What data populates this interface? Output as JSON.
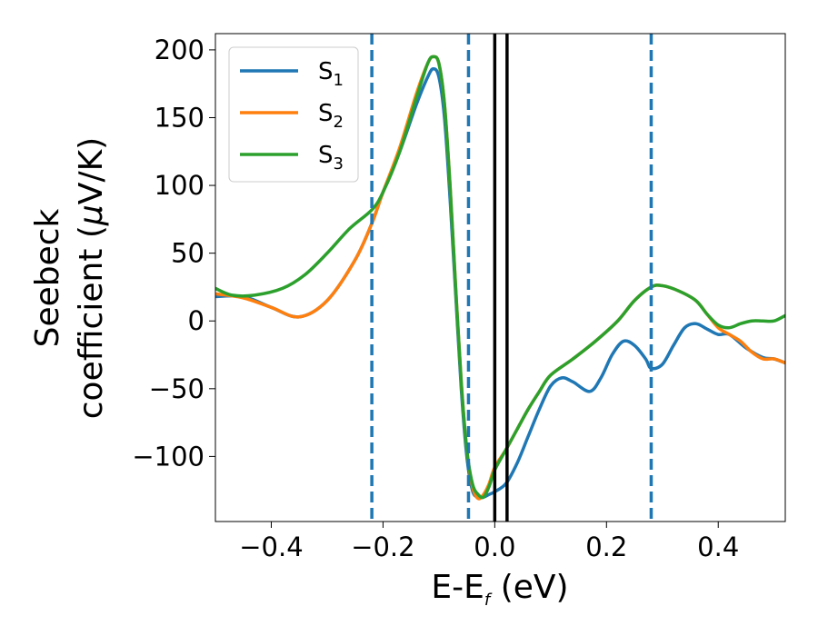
{
  "chart_data": {
    "type": "line",
    "xlabel": {
      "main": "E-E",
      "sub": "f",
      "unit": " (eV)"
    },
    "ylabel": {
      "line1": "Seebeck",
      "line2_pre": "coefficient  (",
      "line2_mu": "μ",
      "line2_post": "V/K)"
    },
    "xlim": [
      -0.5,
      0.52
    ],
    "ylim": [
      -148,
      212
    ],
    "xticks": [
      -0.4,
      -0.2,
      0.0,
      0.2,
      0.4
    ],
    "xtick_labels": [
      "−0.4",
      "−0.2",
      "0.0",
      "0.2",
      "0.4"
    ],
    "yticks": [
      -100,
      -50,
      0,
      50,
      100,
      150,
      200
    ],
    "ytick_labels": [
      "−100",
      "−50",
      "0",
      "50",
      "100",
      "150",
      "200"
    ],
    "grid": false,
    "legend_position": "top-left",
    "vlines_dashed": {
      "color": "#1f77b4",
      "x": [
        -0.22,
        -0.047,
        0.28
      ]
    },
    "vlines_solid": {
      "color": "#000000",
      "x": [
        0.0,
        0.022
      ]
    },
    "series": [
      {
        "name": "S",
        "name_sub": "1",
        "color": "#1f77b4",
        "points": [
          [
            -0.5,
            18
          ],
          [
            -0.45,
            18
          ],
          [
            -0.4,
            10
          ],
          [
            -0.35,
            3
          ],
          [
            -0.3,
            15
          ],
          [
            -0.25,
            45
          ],
          [
            -0.22,
            72
          ],
          [
            -0.2,
            95
          ],
          [
            -0.17,
            125
          ],
          [
            -0.14,
            160
          ],
          [
            -0.12,
            180
          ],
          [
            -0.11,
            186
          ],
          [
            -0.1,
            180
          ],
          [
            -0.09,
            150
          ],
          [
            -0.08,
            90
          ],
          [
            -0.07,
            20
          ],
          [
            -0.06,
            -50
          ],
          [
            -0.05,
            -100
          ],
          [
            -0.04,
            -125
          ],
          [
            -0.03,
            -130
          ],
          [
            -0.02,
            -130
          ],
          [
            -0.01,
            -128
          ],
          [
            0.0,
            -126
          ],
          [
            0.02,
            -120
          ],
          [
            0.04,
            -105
          ],
          [
            0.06,
            -85
          ],
          [
            0.08,
            -65
          ],
          [
            0.1,
            -48
          ],
          [
            0.12,
            -42
          ],
          [
            0.14,
            -45
          ],
          [
            0.17,
            -52
          ],
          [
            0.19,
            -42
          ],
          [
            0.21,
            -25
          ],
          [
            0.23,
            -15
          ],
          [
            0.25,
            -18
          ],
          [
            0.27,
            -28
          ],
          [
            0.28,
            -35
          ],
          [
            0.3,
            -32
          ],
          [
            0.32,
            -18
          ],
          [
            0.34,
            -5
          ],
          [
            0.36,
            -2
          ],
          [
            0.38,
            -6
          ],
          [
            0.4,
            -10
          ],
          [
            0.42,
            -10
          ],
          [
            0.45,
            -20
          ],
          [
            0.48,
            -27
          ],
          [
            0.5,
            -28
          ],
          [
            0.52,
            -31
          ]
        ]
      },
      {
        "name": "S",
        "name_sub": "2",
        "color": "#ff7f0e",
        "points": [
          [
            -0.5,
            20
          ],
          [
            -0.45,
            17
          ],
          [
            -0.4,
            10
          ],
          [
            -0.35,
            3
          ],
          [
            -0.3,
            15
          ],
          [
            -0.25,
            45
          ],
          [
            -0.22,
            72
          ],
          [
            -0.2,
            95
          ],
          [
            -0.17,
            128
          ],
          [
            -0.14,
            168
          ],
          [
            -0.12,
            190
          ],
          [
            -0.11,
            195
          ],
          [
            -0.1,
            190
          ],
          [
            -0.09,
            160
          ],
          [
            -0.08,
            100
          ],
          [
            -0.07,
            25
          ],
          [
            -0.06,
            -45
          ],
          [
            -0.05,
            -95
          ],
          [
            -0.04,
            -122
          ],
          [
            -0.03,
            -131
          ],
          [
            -0.02,
            -128
          ],
          [
            -0.01,
            -120
          ],
          [
            0.0,
            -108
          ],
          [
            0.02,
            -95
          ],
          [
            0.04,
            -80
          ],
          [
            0.06,
            -65
          ],
          [
            0.08,
            -52
          ],
          [
            0.1,
            -40
          ],
          [
            0.14,
            -28
          ],
          [
            0.18,
            -15
          ],
          [
            0.22,
            0
          ],
          [
            0.25,
            15
          ],
          [
            0.28,
            25
          ],
          [
            0.3,
            26
          ],
          [
            0.33,
            22
          ],
          [
            0.36,
            15
          ],
          [
            0.38,
            5
          ],
          [
            0.4,
            -5
          ],
          [
            0.42,
            -10
          ],
          [
            0.44,
            -15
          ],
          [
            0.46,
            -23
          ],
          [
            0.48,
            -28
          ],
          [
            0.5,
            -28
          ],
          [
            0.52,
            -31
          ]
        ]
      },
      {
        "name": "S",
        "name_sub": "3",
        "color": "#2ca02c",
        "points": [
          [
            -0.5,
            24
          ],
          [
            -0.47,
            19
          ],
          [
            -0.43,
            19
          ],
          [
            -0.38,
            24
          ],
          [
            -0.34,
            34
          ],
          [
            -0.3,
            50
          ],
          [
            -0.26,
            68
          ],
          [
            -0.22,
            82
          ],
          [
            -0.2,
            95
          ],
          [
            -0.17,
            125
          ],
          [
            -0.14,
            165
          ],
          [
            -0.12,
            190
          ],
          [
            -0.11,
            195
          ],
          [
            -0.1,
            190
          ],
          [
            -0.09,
            160
          ],
          [
            -0.08,
            100
          ],
          [
            -0.07,
            25
          ],
          [
            -0.06,
            -45
          ],
          [
            -0.05,
            -95
          ],
          [
            -0.04,
            -120
          ],
          [
            -0.03,
            -128
          ],
          [
            -0.02,
            -130
          ],
          [
            -0.01,
            -122
          ],
          [
            0.0,
            -110
          ],
          [
            0.02,
            -95
          ],
          [
            0.04,
            -80
          ],
          [
            0.06,
            -65
          ],
          [
            0.08,
            -52
          ],
          [
            0.1,
            -40
          ],
          [
            0.14,
            -28
          ],
          [
            0.18,
            -15
          ],
          [
            0.22,
            0
          ],
          [
            0.25,
            15
          ],
          [
            0.28,
            25
          ],
          [
            0.3,
            26
          ],
          [
            0.33,
            22
          ],
          [
            0.36,
            15
          ],
          [
            0.38,
            5
          ],
          [
            0.4,
            -3
          ],
          [
            0.42,
            -5
          ],
          [
            0.44,
            -2
          ],
          [
            0.46,
            0
          ],
          [
            0.48,
            0
          ],
          [
            0.5,
            0
          ],
          [
            0.52,
            4
          ]
        ]
      }
    ]
  }
}
